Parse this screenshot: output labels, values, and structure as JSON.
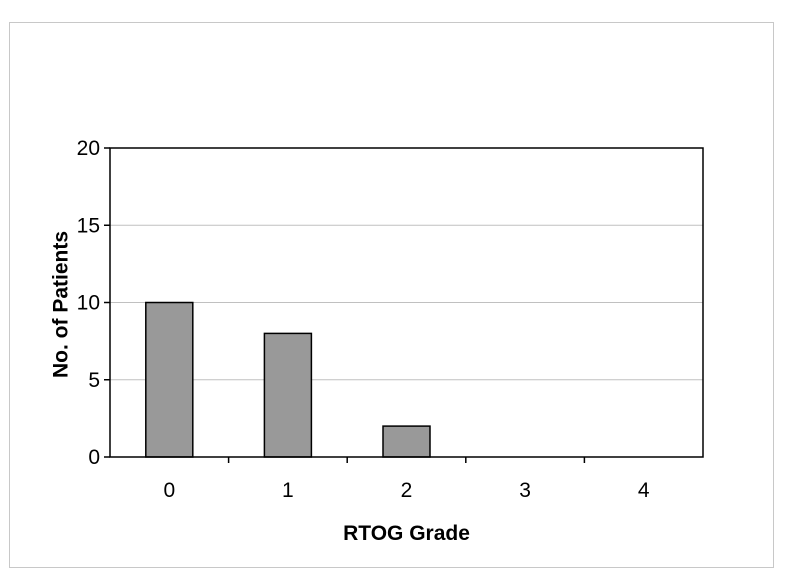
{
  "chart_data": {
    "type": "bar",
    "title": "",
    "xlabel": "RTOG Grade",
    "ylabel": "No. of Patients",
    "categories": [
      "0",
      "1",
      "2",
      "3",
      "4"
    ],
    "values": [
      10,
      8,
      2,
      0,
      0
    ],
    "ylim": [
      0,
      20
    ],
    "yticks": [
      0,
      5,
      10,
      15,
      20
    ],
    "grid": "horizontal",
    "legend": "none",
    "bar_color": "#999999",
    "grid_color": "#c0c0c0"
  }
}
